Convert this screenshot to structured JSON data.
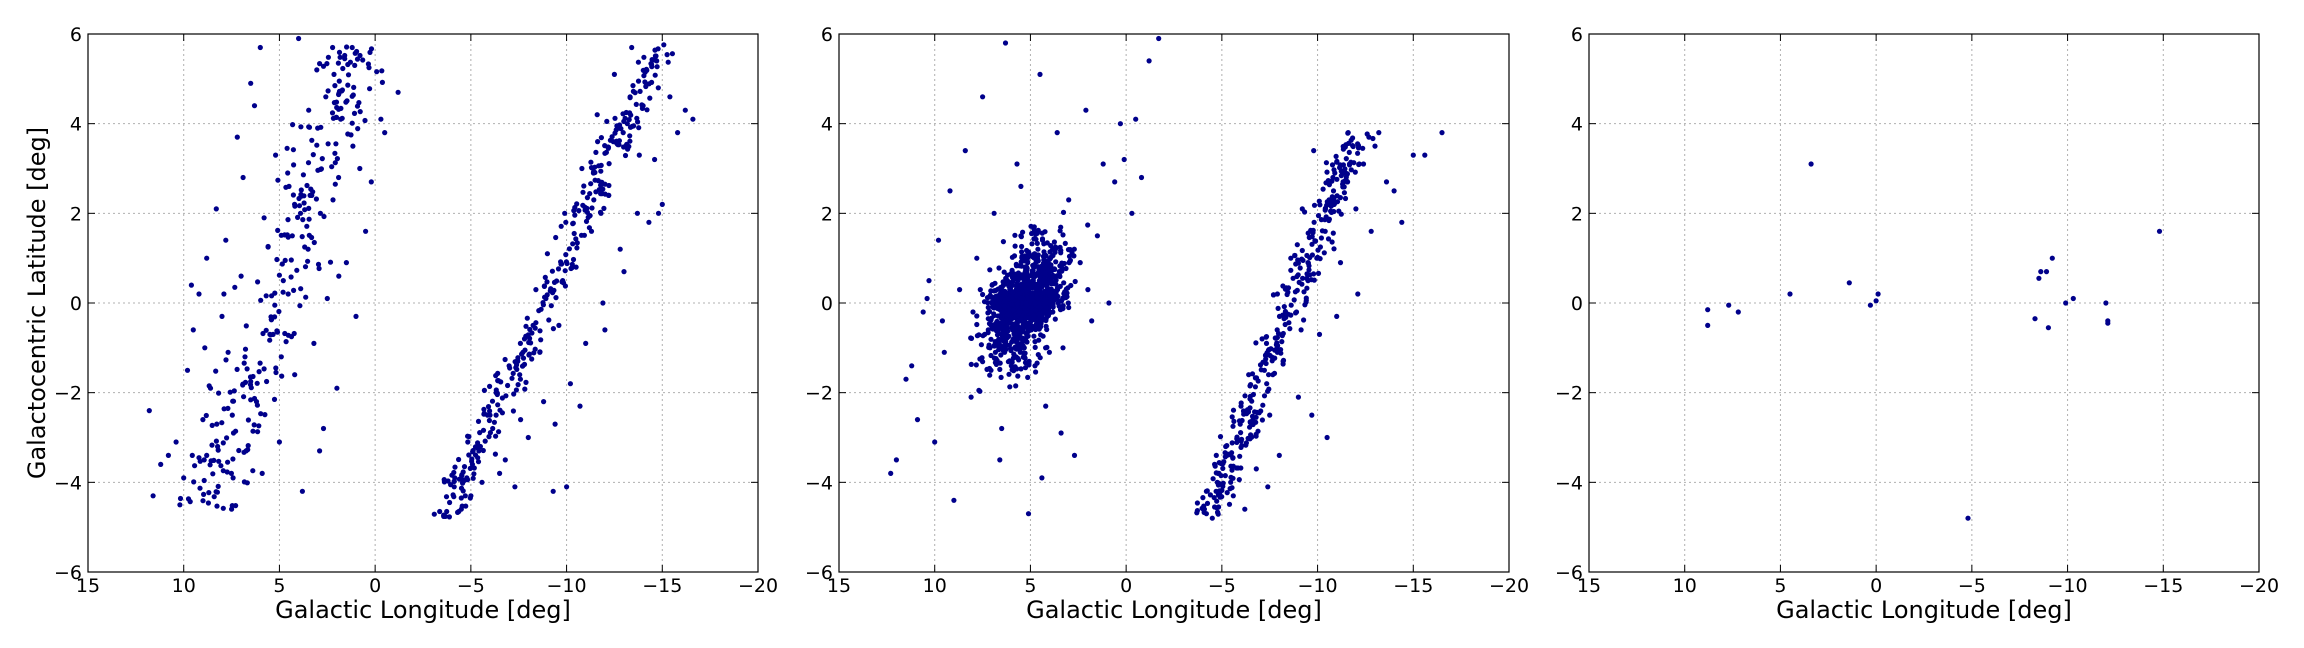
{
  "figure": {
    "ylabel": "Galactocentric Latitude [deg]",
    "xlabel": "Galactic Longitude [deg]"
  },
  "style": {
    "point_color": "#00008b",
    "grid_color": "#b0b0b0"
  },
  "chart_data": [
    {
      "type": "scatter",
      "xlabel": "Galactic Longitude [deg]",
      "ylabel": "Galactocentric Latitude [deg]",
      "xlim": [
        15,
        -20
      ],
      "ylim": [
        -6,
        6
      ],
      "xticks": [
        15,
        10,
        5,
        0,
        -5,
        -10,
        -15,
        -20
      ],
      "yticks": [
        6,
        4,
        2,
        0,
        -2,
        -4,
        -6
      ],
      "grid": true,
      "x_axis_inverted": true,
      "point_count_estimate": 720,
      "points": [
        [
          11.8,
          -2.4
        ],
        [
          11.6,
          -4.3
        ],
        [
          11.2,
          -3.6
        ],
        [
          10.8,
          -3.4
        ],
        [
          10.4,
          -3.1
        ],
        [
          10.2,
          -4.5
        ],
        [
          10.0,
          -3.9
        ],
        [
          9.8,
          -1.5
        ],
        [
          9.5,
          -0.6
        ],
        [
          9.2,
          0.2
        ],
        [
          9.0,
          -2.6
        ],
        [
          8.8,
          1.0
        ],
        [
          8.6,
          -1.9
        ],
        [
          8.3,
          2.1
        ],
        [
          8.0,
          -0.3
        ],
        [
          7.8,
          1.4
        ],
        [
          7.5,
          -4.6
        ],
        [
          7.2,
          3.7
        ],
        [
          7.0,
          0.6
        ],
        [
          6.8,
          -1.2
        ],
        [
          6.5,
          4.9
        ],
        [
          6.2,
          -2.2
        ],
        [
          6.0,
          5.7
        ],
        [
          5.8,
          1.9
        ],
        [
          5.5,
          -0.7
        ],
        [
          5.2,
          3.3
        ],
        [
          5.0,
          -3.1
        ],
        [
          4.8,
          0.5
        ],
        [
          4.5,
          2.6
        ],
        [
          4.2,
          -1.6
        ],
        [
          4.0,
          5.9
        ],
        [
          3.8,
          -4.2
        ],
        [
          3.5,
          1.2
        ],
        [
          3.2,
          -0.9
        ],
        [
          3.0,
          3.9
        ],
        [
          2.7,
          -2.8
        ],
        [
          2.5,
          0.1
        ],
        [
          2.2,
          2.3
        ],
        [
          2.0,
          -1.9
        ],
        [
          1.8,
          4.1
        ],
        [
          1.5,
          0.9
        ],
        [
          1.2,
          5.7
        ],
        [
          1.0,
          -0.3
        ],
        [
          0.8,
          3.0
        ],
        [
          0.5,
          1.6
        ],
        [
          0.2,
          2.7
        ],
        [
          -0.3,
          4.1
        ],
        [
          -0.5,
          3.8
        ],
        [
          -1.2,
          4.7
        ],
        [
          9.6,
          0.4
        ],
        [
          8.9,
          -1.0
        ],
        [
          7.9,
          0.2
        ],
        [
          6.9,
          2.8
        ],
        [
          5.9,
          -3.8
        ],
        [
          4.9,
          -1.2
        ],
        [
          3.9,
          2.0
        ],
        [
          2.9,
          -3.3
        ],
        [
          1.9,
          0.6
        ],
        [
          6.3,
          4.4
        ],
        [
          7.4,
          -2.9
        ],
        [
          -4.5,
          -4.6
        ],
        [
          -5.0,
          -4.3
        ],
        [
          -5.5,
          -3.2
        ],
        [
          -6.0,
          -2.5
        ],
        [
          -6.5,
          -3.8
        ],
        [
          -7.0,
          -1.4
        ],
        [
          -7.3,
          -4.1
        ],
        [
          -7.8,
          -0.8
        ],
        [
          -8.0,
          -3.0
        ],
        [
          -8.4,
          0.3
        ],
        [
          -8.8,
          -2.2
        ],
        [
          -9.0,
          1.1
        ],
        [
          -9.3,
          -4.2
        ],
        [
          -9.6,
          -0.5
        ],
        [
          -9.9,
          2.0
        ],
        [
          -10.2,
          -1.8
        ],
        [
          -10.5,
          0.8
        ],
        [
          -10.8,
          3.0
        ],
        [
          -11.0,
          -0.9
        ],
        [
          -11.3,
          1.6
        ],
        [
          -11.6,
          4.2
        ],
        [
          -11.9,
          0.0
        ],
        [
          -12.2,
          2.4
        ],
        [
          -12.5,
          5.1
        ],
        [
          -12.8,
          1.2
        ],
        [
          -13.1,
          3.5
        ],
        [
          -13.4,
          5.7
        ],
        [
          -13.7,
          2.0
        ],
        [
          -14.0,
          4.4
        ],
        [
          -14.3,
          1.8
        ],
        [
          -14.6,
          3.2
        ],
        [
          -15.0,
          2.2
        ],
        [
          -15.4,
          4.6
        ],
        [
          -15.8,
          3.8
        ],
        [
          -16.2,
          4.3
        ],
        [
          -16.6,
          4.1
        ],
        [
          -9.4,
          -2.7
        ],
        [
          -10.7,
          -2.3
        ],
        [
          -12.0,
          -0.6
        ],
        [
          -13.0,
          0.7
        ],
        [
          -7.6,
          -2.6
        ],
        [
          -8.6,
          -1.1
        ],
        [
          -11.4,
          2.9
        ],
        [
          -12.7,
          3.9
        ],
        [
          -6.8,
          -3.5
        ],
        [
          -10.0,
          -4.1
        ],
        [
          -14.8,
          2.0
        ],
        [
          -9.8,
          0.5
        ],
        [
          -11.8,
          2.0
        ],
        [
          -13.8,
          3.3
        ]
      ]
    },
    {
      "type": "scatter",
      "xlabel": "Galactic Longitude [deg]",
      "xlim": [
        15,
        -20
      ],
      "ylim": [
        -6,
        6
      ],
      "xticks": [
        15,
        10,
        5,
        0,
        -5,
        -10,
        -15,
        -20
      ],
      "yticks": [
        6,
        4,
        2,
        0,
        -2,
        -4,
        -6
      ],
      "grid": true,
      "x_axis_inverted": true,
      "point_count_estimate": 1750,
      "points": [
        [
          12.3,
          -3.8
        ],
        [
          12.0,
          -3.5
        ],
        [
          11.5,
          -1.7
        ],
        [
          11.2,
          -1.4
        ],
        [
          10.9,
          -2.6
        ],
        [
          10.6,
          -0.2
        ],
        [
          10.3,
          0.5
        ],
        [
          10.0,
          -3.1
        ],
        [
          9.8,
          1.4
        ],
        [
          9.5,
          -1.1
        ],
        [
          9.2,
          2.5
        ],
        [
          9.0,
          -4.4
        ],
        [
          8.7,
          0.3
        ],
        [
          8.4,
          3.4
        ],
        [
          8.1,
          -2.1
        ],
        [
          7.8,
          1.0
        ],
        [
          7.5,
          4.6
        ],
        [
          7.2,
          -0.6
        ],
        [
          6.9,
          2.0
        ],
        [
          6.6,
          -3.5
        ],
        [
          6.3,
          5.8
        ],
        [
          6.0,
          -1.4
        ],
        [
          5.7,
          3.1
        ],
        [
          5.4,
          0.2
        ],
        [
          5.1,
          -4.7
        ],
        [
          4.8,
          1.7
        ],
        [
          4.5,
          5.1
        ],
        [
          4.2,
          -2.3
        ],
        [
          3.9,
          0.6
        ],
        [
          3.6,
          3.8
        ],
        [
          3.3,
          -1.0
        ],
        [
          3.0,
          2.3
        ],
        [
          2.7,
          -3.4
        ],
        [
          2.4,
          0.9
        ],
        [
          2.1,
          4.3
        ],
        [
          1.8,
          -0.4
        ],
        [
          1.5,
          1.5
        ],
        [
          1.2,
          3.1
        ],
        [
          0.9,
          0.0
        ],
        [
          0.6,
          2.7
        ],
        [
          0.3,
          4.0
        ],
        [
          0.1,
          3.2
        ],
        [
          -0.3,
          2.0
        ],
        [
          -0.5,
          4.1
        ],
        [
          -0.8,
          2.8
        ],
        [
          -1.2,
          5.4
        ],
        [
          -1.7,
          5.9
        ],
        [
          8.0,
          -0.2
        ],
        [
          7.0,
          0.4
        ],
        [
          6.0,
          0.1
        ],
        [
          5.0,
          -0.3
        ],
        [
          4.0,
          0.2
        ],
        [
          3.0,
          -0.1
        ],
        [
          2.0,
          0.3
        ],
        [
          9.6,
          -0.4
        ],
        [
          10.4,
          0.1
        ],
        [
          6.5,
          -2.8
        ],
        [
          5.5,
          2.6
        ],
        [
          4.4,
          -3.9
        ],
        [
          3.4,
          -2.9
        ],
        [
          -4.5,
          -4.8
        ],
        [
          -4.8,
          -3.8
        ],
        [
          -5.2,
          -3.2
        ],
        [
          -5.6,
          -4.3
        ],
        [
          -6.0,
          -2.3
        ],
        [
          -6.4,
          -1.6
        ],
        [
          -6.8,
          -3.7
        ],
        [
          -7.1,
          -0.8
        ],
        [
          -7.5,
          -2.5
        ],
        [
          -7.9,
          0.2
        ],
        [
          -8.2,
          -1.3
        ],
        [
          -8.6,
          1.0
        ],
        [
          -8.9,
          -0.2
        ],
        [
          -9.2,
          2.1
        ],
        [
          -9.5,
          0.5
        ],
        [
          -9.8,
          3.4
        ],
        [
          -10.1,
          -0.7
        ],
        [
          -10.4,
          1.6
        ],
        [
          -10.8,
          2.8
        ],
        [
          -11.2,
          0.9
        ],
        [
          -11.6,
          3.8
        ],
        [
          -12.0,
          2.1
        ],
        [
          -12.4,
          3.1
        ],
        [
          -12.8,
          1.6
        ],
        [
          -13.2,
          3.8
        ],
        [
          -13.6,
          2.7
        ],
        [
          -14.0,
          2.5
        ],
        [
          -14.4,
          1.8
        ],
        [
          -15.0,
          3.3
        ],
        [
          -15.6,
          3.3
        ],
        [
          -16.5,
          3.8
        ],
        [
          -8.0,
          -3.4
        ],
        [
          -9.0,
          -2.1
        ],
        [
          -10.5,
          -3.0
        ],
        [
          -11.0,
          -0.3
        ],
        [
          -7.4,
          -4.1
        ],
        [
          -6.2,
          -4.6
        ],
        [
          -12.1,
          0.2
        ],
        [
          -13.0,
          3.5
        ],
        [
          -9.7,
          -2.5
        ]
      ]
    },
    {
      "type": "scatter",
      "xlabel": "Galactic Longitude [deg]",
      "xlim": [
        15,
        -20
      ],
      "ylim": [
        -6,
        6
      ],
      "xticks": [
        15,
        10,
        5,
        0,
        -5,
        -10,
        -15,
        -20
      ],
      "yticks": [
        6,
        4,
        2,
        0,
        -2,
        -4,
        -6
      ],
      "grid": true,
      "x_axis_inverted": true,
      "points": [
        [
          8.8,
          -0.15
        ],
        [
          8.8,
          -0.5
        ],
        [
          7.7,
          -0.05
        ],
        [
          7.2,
          -0.2
        ],
        [
          4.5,
          0.2
        ],
        [
          3.4,
          3.1
        ],
        [
          1.4,
          0.45
        ],
        [
          0.3,
          -0.05
        ],
        [
          0.0,
          0.05
        ],
        [
          -0.1,
          0.2
        ],
        [
          -4.8,
          -4.8
        ],
        [
          -8.3,
          -0.35
        ],
        [
          -8.5,
          0.55
        ],
        [
          -8.6,
          0.7
        ],
        [
          -8.9,
          0.7
        ],
        [
          -9.0,
          -0.55
        ],
        [
          -9.2,
          1.0
        ],
        [
          -9.9,
          0.0
        ],
        [
          -10.3,
          0.1
        ],
        [
          -12.0,
          0.0
        ],
        [
          -12.1,
          -0.45
        ],
        [
          -12.1,
          -0.4
        ],
        [
          -14.8,
          1.6
        ]
      ]
    }
  ]
}
